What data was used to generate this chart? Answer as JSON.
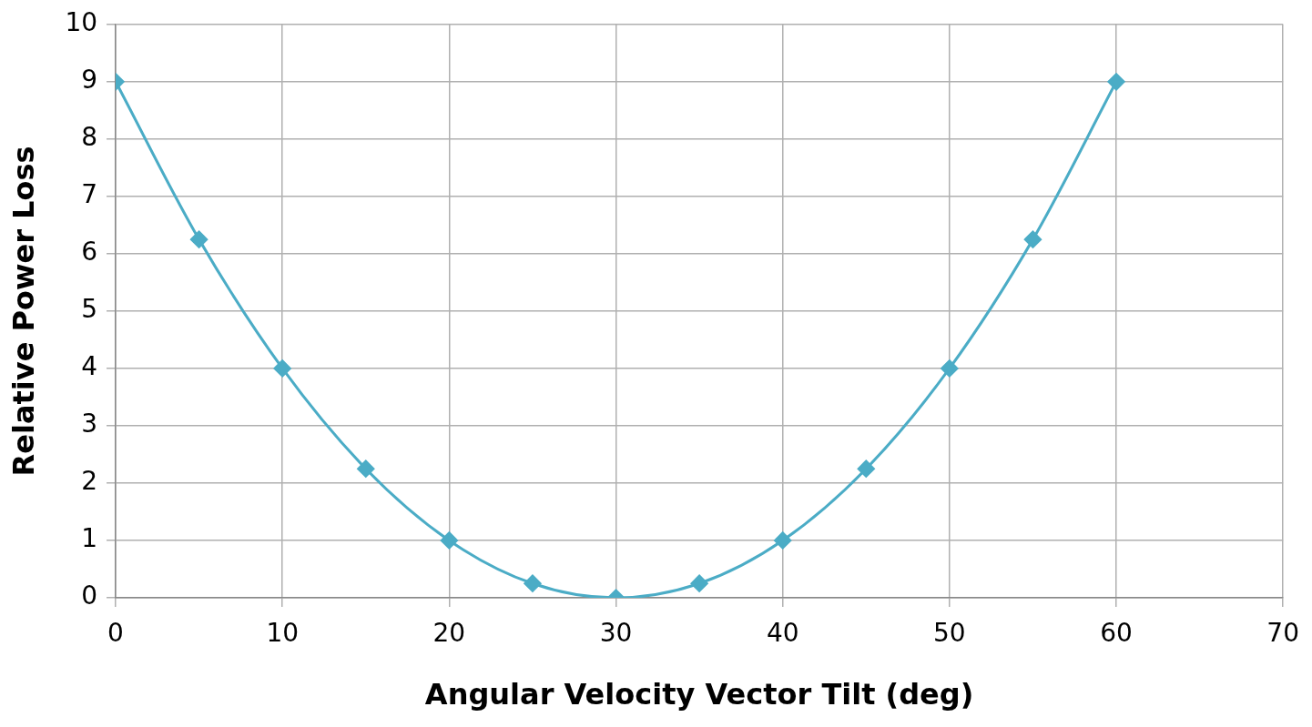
{
  "chart_data": {
    "type": "line",
    "xlabel": "Angular Velocity Vector Tilt (deg)",
    "ylabel": "Relative Power Loss",
    "x": [
      0,
      5,
      10,
      15,
      20,
      25,
      30,
      35,
      40,
      45,
      50,
      55,
      60
    ],
    "series": [
      {
        "color": "#4bacc6",
        "values": [
          9,
          6.25,
          4,
          2.25,
          1,
          0.25,
          0,
          0.25,
          1,
          2.25,
          4,
          6.25,
          9
        ]
      }
    ],
    "xlim": [
      0,
      70
    ],
    "xticks": [
      0,
      10,
      20,
      30,
      40,
      50,
      60,
      70
    ],
    "ylim": [
      0,
      10
    ],
    "yticks": [
      0,
      1,
      2,
      3,
      4,
      5,
      6,
      7,
      8,
      9,
      10
    ],
    "grid": true,
    "legend": false,
    "marker": "diamond",
    "line_style": "solid"
  }
}
